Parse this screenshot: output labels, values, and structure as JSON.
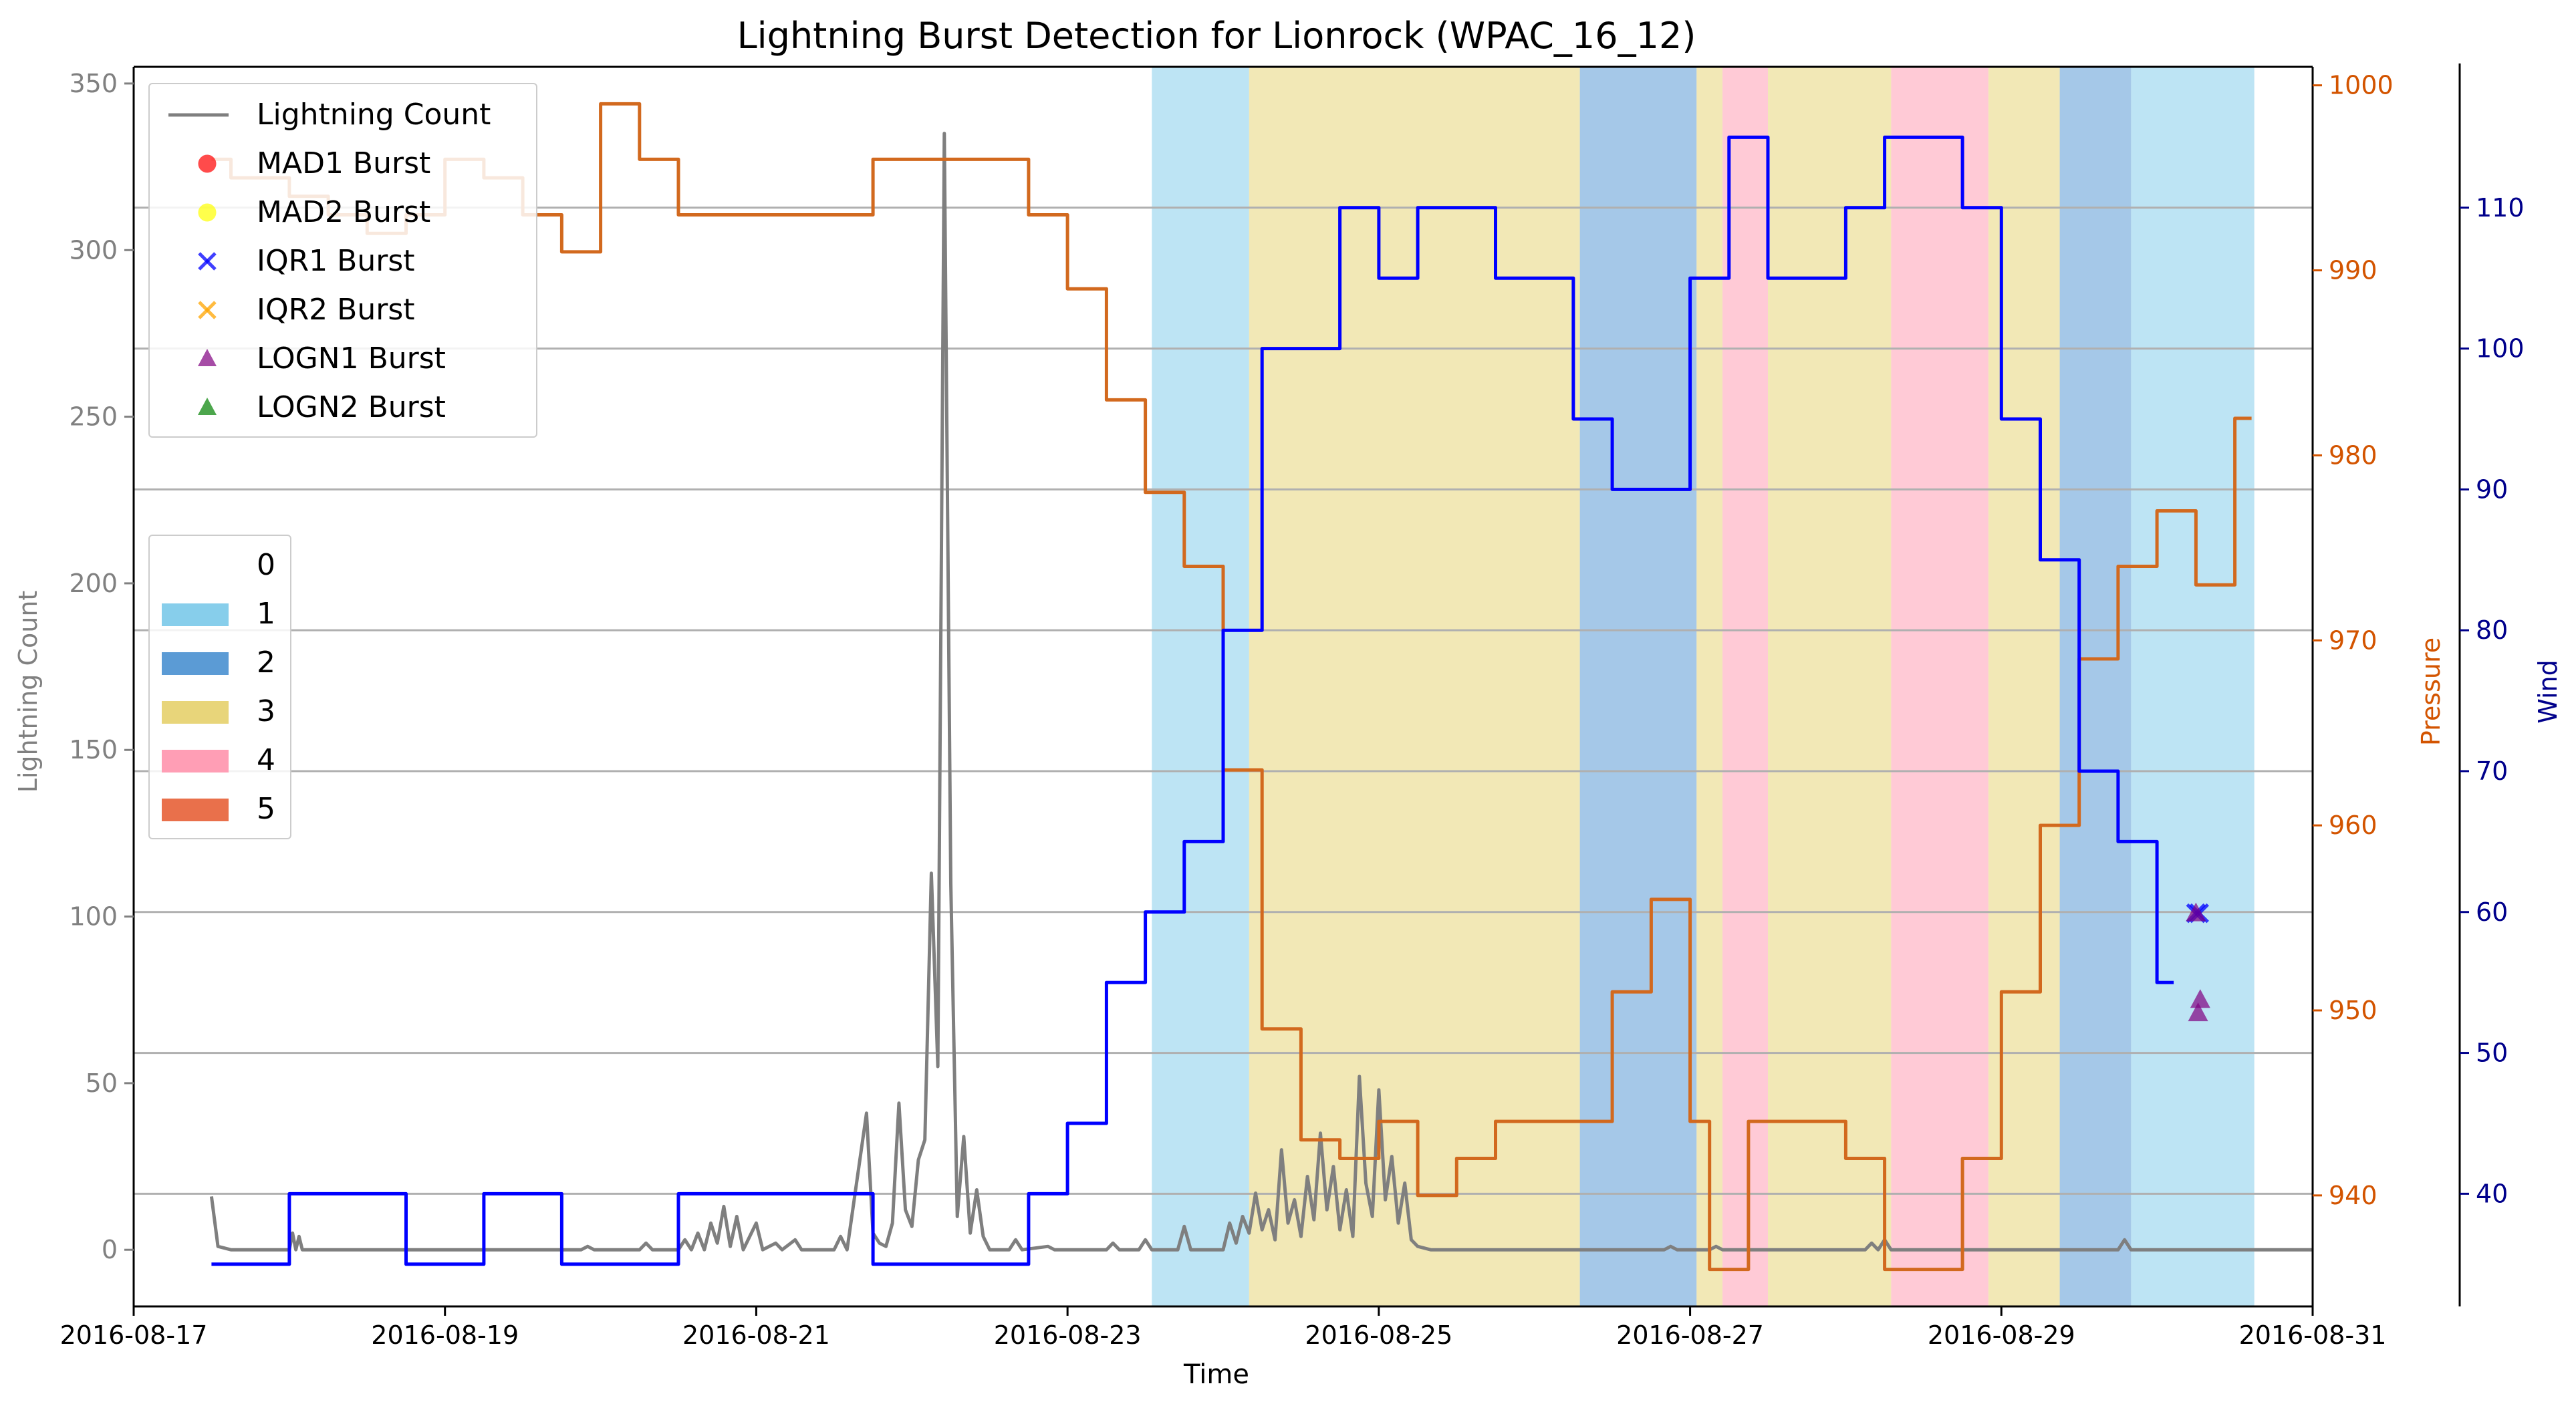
{
  "chart_data": {
    "type": "line",
    "title": "Lightning Burst Detection for Lionrock (WPAC_16_12)",
    "xlabel": "Time",
    "y_left_label": "Lightning Count",
    "y_right1_label": "Pressure",
    "y_right2_label": "Wind",
    "xlim": [
      "2016-08-17T00:00",
      "2016-08-31T00:00"
    ],
    "x_ticks": [
      "2016-08-17",
      "2016-08-19",
      "2016-08-21",
      "2016-08-23",
      "2016-08-25",
      "2016-08-27",
      "2016-08-29",
      "2016-08-31"
    ],
    "y_left_lim": [
      -17,
      355
    ],
    "y_left_ticks": [
      0,
      50,
      100,
      150,
      200,
      250,
      300,
      350
    ],
    "y_pressure_lim": [
      934,
      1001
    ],
    "y_pressure_ticks": [
      940,
      950,
      960,
      970,
      980,
      990,
      1000
    ],
    "y_wind_lim": [
      32,
      120
    ],
    "y_wind_ticks": [
      40,
      50,
      60,
      70,
      80,
      90,
      100,
      110
    ],
    "grid": "horizontal lines at wind ticks",
    "colors": {
      "lightning": "#7f7f7f",
      "pressure": "#d2691e",
      "wind": "#0000ff",
      "left_axis": "#808080",
      "pressure_axis": "#d35400",
      "wind_axis": "#00008b"
    },
    "category_legend": {
      "labels": [
        "0",
        "1",
        "2",
        "3",
        "4",
        "5"
      ],
      "colors": [
        "#ffffff",
        "#87ceeb",
        "#5b9bd5",
        "#e8d57a",
        "#ff9eb5",
        "#e9704b"
      ]
    },
    "category_bands": [
      {
        "start": "2016-08-23T13:00",
        "end": "2016-08-24T04:00",
        "category": 1
      },
      {
        "start": "2016-08-24T04:00",
        "end": "2016-08-26T07:00",
        "category": 3
      },
      {
        "start": "2016-08-26T07:00",
        "end": "2016-08-27T01:00",
        "category": 2
      },
      {
        "start": "2016-08-27T01:00",
        "end": "2016-08-27T05:00",
        "category": 3
      },
      {
        "start": "2016-08-27T05:00",
        "end": "2016-08-27T12:00",
        "category": 4
      },
      {
        "start": "2016-08-27T12:00",
        "end": "2016-08-28T07:00",
        "category": 3
      },
      {
        "start": "2016-08-28T07:00",
        "end": "2016-08-28T22:00",
        "category": 4
      },
      {
        "start": "2016-08-28T22:00",
        "end": "2016-08-29T09:00",
        "category": 3
      },
      {
        "start": "2016-08-29T09:00",
        "end": "2016-08-29T20:00",
        "category": 2
      },
      {
        "start": "2016-08-29T20:00",
        "end": "2016-08-30T15:00",
        "category": 1
      }
    ],
    "series": [
      {
        "name": "Lightning Count",
        "axis": "left",
        "points": [
          [
            "2016-08-17T12:00",
            16
          ],
          [
            "2016-08-17T13:00",
            1
          ],
          [
            "2016-08-17T15:00",
            0
          ],
          [
            "2016-08-18T00:00",
            0
          ],
          [
            "2016-08-18T00:30",
            5
          ],
          [
            "2016-08-18T01:00",
            0
          ],
          [
            "2016-08-18T01:30",
            4
          ],
          [
            "2016-08-18T02:00",
            0
          ],
          [
            "2016-08-19T21:00",
            0
          ],
          [
            "2016-08-19T22:00",
            1
          ],
          [
            "2016-08-19T23:00",
            0
          ],
          [
            "2016-08-20T06:00",
            0
          ],
          [
            "2016-08-20T07:00",
            2
          ],
          [
            "2016-08-20T08:00",
            0
          ],
          [
            "2016-08-20T12:00",
            0
          ],
          [
            "2016-08-20T13:00",
            3
          ],
          [
            "2016-08-20T14:00",
            0
          ],
          [
            "2016-08-20T15:00",
            5
          ],
          [
            "2016-08-20T16:00",
            0
          ],
          [
            "2016-08-20T17:00",
            8
          ],
          [
            "2016-08-20T18:00",
            2
          ],
          [
            "2016-08-20T19:00",
            13
          ],
          [
            "2016-08-20T20:00",
            1
          ],
          [
            "2016-08-20T21:00",
            10
          ],
          [
            "2016-08-20T22:00",
            0
          ],
          [
            "2016-08-21T00:00",
            8
          ],
          [
            "2016-08-21T01:00",
            0
          ],
          [
            "2016-08-21T03:00",
            2
          ],
          [
            "2016-08-21T04:00",
            0
          ],
          [
            "2016-08-21T06:00",
            3
          ],
          [
            "2016-08-21T07:00",
            0
          ],
          [
            "2016-08-21T12:00",
            0
          ],
          [
            "2016-08-21T13:00",
            4
          ],
          [
            "2016-08-21T14:00",
            0
          ],
          [
            "2016-08-21T17:00",
            41
          ],
          [
            "2016-08-21T18:00",
            5
          ],
          [
            "2016-08-21T19:00",
            2
          ],
          [
            "2016-08-21T20:00",
            1
          ],
          [
            "2016-08-21T21:00",
            8
          ],
          [
            "2016-08-21T22:00",
            44
          ],
          [
            "2016-08-21T23:00",
            12
          ],
          [
            "2016-08-22T00:00",
            7
          ],
          [
            "2016-08-22T01:00",
            27
          ],
          [
            "2016-08-22T02:00",
            33
          ],
          [
            "2016-08-22T03:00",
            113
          ],
          [
            "2016-08-22T04:00",
            55
          ],
          [
            "2016-08-22T05:00",
            335
          ],
          [
            "2016-08-22T06:00",
            110
          ],
          [
            "2016-08-22T07:00",
            10
          ],
          [
            "2016-08-22T08:00",
            34
          ],
          [
            "2016-08-22T09:00",
            5
          ],
          [
            "2016-08-22T10:00",
            18
          ],
          [
            "2016-08-22T11:00",
            4
          ],
          [
            "2016-08-22T12:00",
            0
          ],
          [
            "2016-08-22T15:00",
            0
          ],
          [
            "2016-08-22T16:00",
            3
          ],
          [
            "2016-08-22T17:00",
            0
          ],
          [
            "2016-08-22T21:00",
            1
          ],
          [
            "2016-08-22T22:00",
            0
          ],
          [
            "2016-08-23T06:00",
            0
          ],
          [
            "2016-08-23T07:00",
            2
          ],
          [
            "2016-08-23T08:00",
            0
          ],
          [
            "2016-08-23T11:00",
            0
          ],
          [
            "2016-08-23T12:00",
            3
          ],
          [
            "2016-08-23T13:00",
            0
          ],
          [
            "2016-08-23T17:00",
            0
          ],
          [
            "2016-08-23T18:00",
            7
          ],
          [
            "2016-08-23T19:00",
            0
          ],
          [
            "2016-08-24T00:00",
            0
          ],
          [
            "2016-08-24T01:00",
            8
          ],
          [
            "2016-08-24T02:00",
            2
          ],
          [
            "2016-08-24T03:00",
            10
          ],
          [
            "2016-08-24T04:00",
            5
          ],
          [
            "2016-08-24T05:00",
            17
          ],
          [
            "2016-08-24T06:00",
            6
          ],
          [
            "2016-08-24T07:00",
            12
          ],
          [
            "2016-08-24T08:00",
            3
          ],
          [
            "2016-08-24T09:00",
            30
          ],
          [
            "2016-08-24T10:00",
            8
          ],
          [
            "2016-08-24T11:00",
            15
          ],
          [
            "2016-08-24T12:00",
            4
          ],
          [
            "2016-08-24T13:00",
            22
          ],
          [
            "2016-08-24T14:00",
            9
          ],
          [
            "2016-08-24T15:00",
            35
          ],
          [
            "2016-08-24T16:00",
            12
          ],
          [
            "2016-08-24T17:00",
            25
          ],
          [
            "2016-08-24T18:00",
            6
          ],
          [
            "2016-08-24T19:00",
            18
          ],
          [
            "2016-08-24T20:00",
            4
          ],
          [
            "2016-08-24T21:00",
            52
          ],
          [
            "2016-08-24T22:00",
            20
          ],
          [
            "2016-08-24T23:00",
            10
          ],
          [
            "2016-08-25T00:00",
            48
          ],
          [
            "2016-08-25T01:00",
            15
          ],
          [
            "2016-08-25T02:00",
            28
          ],
          [
            "2016-08-25T03:00",
            8
          ],
          [
            "2016-08-25T04:00",
            20
          ],
          [
            "2016-08-25T05:00",
            3
          ],
          [
            "2016-08-25T06:00",
            1
          ],
          [
            "2016-08-25T08:00",
            0
          ],
          [
            "2016-08-26T20:00",
            0
          ],
          [
            "2016-08-26T21:00",
            1
          ],
          [
            "2016-08-26T22:00",
            0
          ],
          [
            "2016-08-27T03:00",
            0
          ],
          [
            "2016-08-27T04:00",
            1
          ],
          [
            "2016-08-27T05:00",
            0
          ],
          [
            "2016-08-28T03:00",
            0
          ],
          [
            "2016-08-28T04:00",
            2
          ],
          [
            "2016-08-28T05:00",
            0
          ],
          [
            "2016-08-28T06:00",
            3
          ],
          [
            "2016-08-28T07:00",
            0
          ],
          [
            "2016-08-29T18:00",
            0
          ],
          [
            "2016-08-29T19:00",
            3
          ],
          [
            "2016-08-29T20:00",
            0
          ],
          [
            "2016-08-30T12:00",
            0
          ],
          [
            "2016-08-30T14:00",
            0
          ],
          [
            "2016-08-30T16:00",
            0
          ],
          [
            "2016-08-30T18:00",
            0
          ],
          [
            "2016-08-30T20:00",
            0
          ],
          [
            "2016-08-30T22:00",
            0
          ],
          [
            "2016-08-31T00:00",
            0
          ]
        ]
      },
      {
        "name": "Pressure",
        "axis": "pressure",
        "points": [
          [
            "2016-08-17T12:00",
            996
          ],
          [
            "2016-08-17T15:00",
            995
          ],
          [
            "2016-08-18T00:00",
            994
          ],
          [
            "2016-08-18T06:00",
            993
          ],
          [
            "2016-08-18T12:00",
            992
          ],
          [
            "2016-08-18T18:00",
            993
          ],
          [
            "2016-08-19T00:00",
            996
          ],
          [
            "2016-08-19T06:00",
            995
          ],
          [
            "2016-08-19T12:00",
            993
          ],
          [
            "2016-08-19T18:00",
            991
          ],
          [
            "2016-08-20T00:00",
            999
          ],
          [
            "2016-08-20T06:00",
            996
          ],
          [
            "2016-08-20T12:00",
            993
          ],
          [
            "2016-08-21T12:00",
            993
          ],
          [
            "2016-08-21T18:00",
            996
          ],
          [
            "2016-08-22T12:00",
            996
          ],
          [
            "2016-08-22T18:00",
            993
          ],
          [
            "2016-08-23T00:00",
            989
          ],
          [
            "2016-08-23T06:00",
            983
          ],
          [
            "2016-08-23T12:00",
            978
          ],
          [
            "2016-08-23T18:00",
            974
          ],
          [
            "2016-08-24T00:00",
            963
          ],
          [
            "2016-08-24T06:00",
            949
          ],
          [
            "2016-08-24T12:00",
            943
          ],
          [
            "2016-08-24T18:00",
            942
          ],
          [
            "2016-08-25T00:00",
            944
          ],
          [
            "2016-08-25T06:00",
            940
          ],
          [
            "2016-08-25T12:00",
            942
          ],
          [
            "2016-08-25T18:00",
            944
          ],
          [
            "2016-08-26T06:00",
            944
          ],
          [
            "2016-08-26T12:00",
            951
          ],
          [
            "2016-08-26T18:00",
            956
          ],
          [
            "2016-08-27T00:00",
            944
          ],
          [
            "2016-08-27T03:00",
            936
          ],
          [
            "2016-08-27T09:00",
            944
          ],
          [
            "2016-08-27T18:00",
            944
          ],
          [
            "2016-08-28T00:00",
            942
          ],
          [
            "2016-08-28T06:00",
            936
          ],
          [
            "2016-08-28T18:00",
            942
          ],
          [
            "2016-08-29T00:00",
            951
          ],
          [
            "2016-08-29T06:00",
            960
          ],
          [
            "2016-08-29T12:00",
            969
          ],
          [
            "2016-08-29T18:00",
            974
          ],
          [
            "2016-08-30T00:00",
            977
          ],
          [
            "2016-08-30T06:00",
            973
          ],
          [
            "2016-08-30T12:00",
            982
          ]
        ]
      },
      {
        "name": "Wind",
        "axis": "wind",
        "points": [
          [
            "2016-08-17T12:00",
            35
          ],
          [
            "2016-08-18T00:00",
            40
          ],
          [
            "2016-08-18T18:00",
            35
          ],
          [
            "2016-08-19T06:00",
            40
          ],
          [
            "2016-08-19T18:00",
            35
          ],
          [
            "2016-08-20T12:00",
            40
          ],
          [
            "2016-08-21T12:00",
            40
          ],
          [
            "2016-08-21T18:00",
            35
          ],
          [
            "2016-08-22T18:00",
            40
          ],
          [
            "2016-08-23T00:00",
            45
          ],
          [
            "2016-08-23T06:00",
            55
          ],
          [
            "2016-08-23T12:00",
            60
          ],
          [
            "2016-08-23T18:00",
            65
          ],
          [
            "2016-08-24T00:00",
            80
          ],
          [
            "2016-08-24T06:00",
            100
          ],
          [
            "2016-08-24T18:00",
            110
          ],
          [
            "2016-08-25T00:00",
            105
          ],
          [
            "2016-08-25T06:00",
            110
          ],
          [
            "2016-08-25T18:00",
            105
          ],
          [
            "2016-08-26T06:00",
            95
          ],
          [
            "2016-08-26T12:00",
            90
          ],
          [
            "2016-08-27T00:00",
            105
          ],
          [
            "2016-08-27T06:00",
            115
          ],
          [
            "2016-08-27T12:00",
            105
          ],
          [
            "2016-08-28T00:00",
            110
          ],
          [
            "2016-08-28T06:00",
            115
          ],
          [
            "2016-08-28T18:00",
            110
          ],
          [
            "2016-08-29T00:00",
            95
          ],
          [
            "2016-08-29T06:00",
            85
          ],
          [
            "2016-08-29T12:00",
            70
          ],
          [
            "2016-08-29T18:00",
            65
          ],
          [
            "2016-08-30T00:00",
            55
          ]
        ]
      }
    ],
    "burst_markers": [
      {
        "name": "MAD1 Burst",
        "symbol": "circle",
        "color": "#ff0000",
        "points": []
      },
      {
        "name": "MAD2 Burst",
        "symbol": "circle",
        "color": "#ffff00",
        "points": []
      },
      {
        "name": "IQR1 Burst",
        "symbol": "x",
        "color": "#0000ff",
        "points": [
          [
            "2016-08-30T06:00",
            101
          ],
          [
            "2016-08-30T06:30",
            101
          ]
        ]
      },
      {
        "name": "IQR2 Burst",
        "symbol": "x",
        "color": "#ffa500",
        "points": []
      },
      {
        "name": "LOGN1 Burst",
        "symbol": "triangle",
        "color": "#800080",
        "points": [
          [
            "2016-08-30T06:00",
            101
          ],
          [
            "2016-08-30T06:20",
            71
          ],
          [
            "2016-08-30T06:40",
            75
          ]
        ]
      },
      {
        "name": "LOGN2 Burst",
        "symbol": "triangle",
        "color": "#008000",
        "points": []
      }
    ]
  }
}
